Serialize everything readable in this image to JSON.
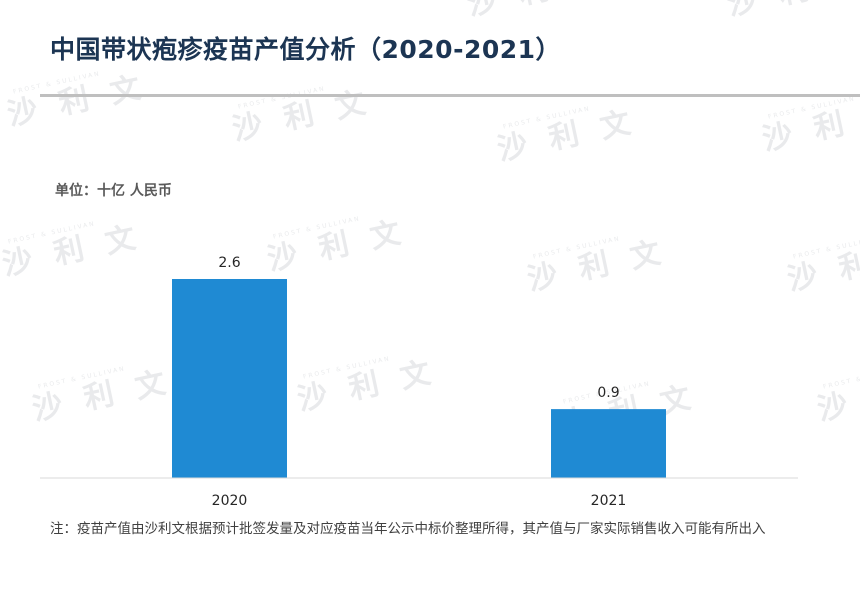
{
  "title": "中国带状疱疹疫苗产值分析（2020-2021）",
  "unit_label": "单位：十亿 人民币",
  "note": "注：疫苗产值由沙利文根据预计批签发量及对应疫苗当年公示中标价整理所得，其产值与厂家实际销售收入可能有所出入",
  "watermark": {
    "text": "沙 利 文",
    "small": "FROST & SULLIVAN"
  },
  "colors": {
    "bar": "#1f8ad3",
    "title": "#1c3553"
  },
  "chart_data": {
    "type": "bar",
    "categories": [
      "2020",
      "2021"
    ],
    "values": [
      2.6,
      0.9
    ],
    "data_labels": [
      "2.6",
      "0.9"
    ],
    "ylim": [
      0,
      2.6
    ],
    "xlabel": "",
    "ylabel": "",
    "grid": false,
    "legend": "none"
  }
}
